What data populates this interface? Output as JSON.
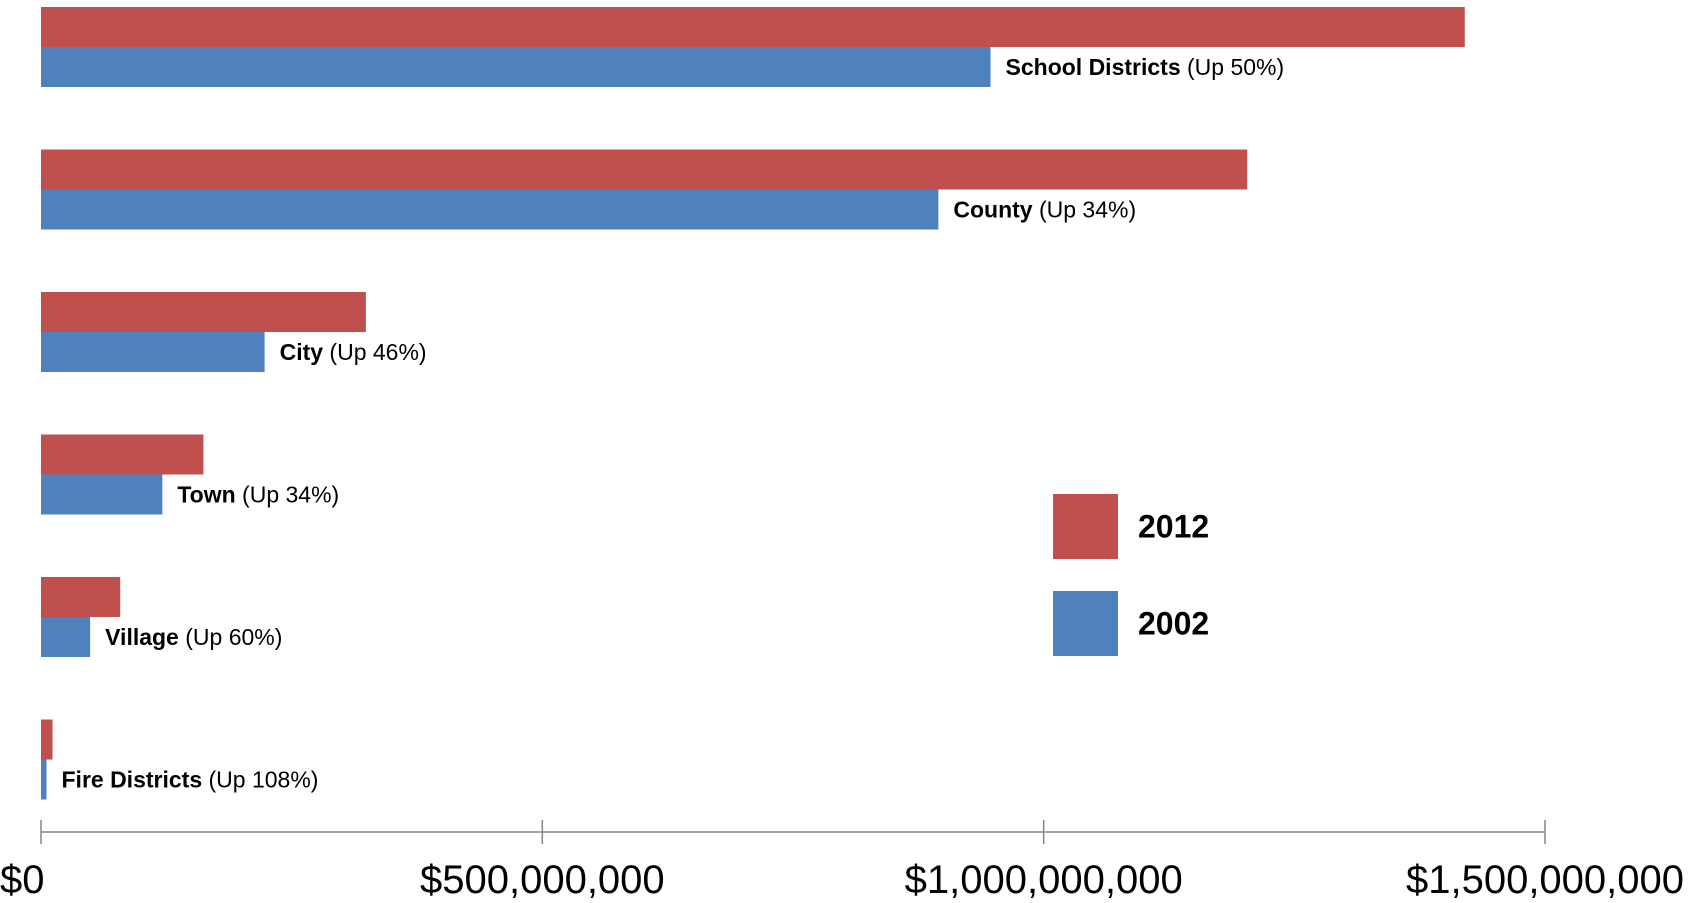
{
  "chart_data": {
    "type": "bar",
    "orientation": "horizontal",
    "categories": [
      "School Districts",
      "County",
      "City",
      "Town",
      "Village",
      "Fire Districts"
    ],
    "change_labels": [
      "(Up 50%)",
      "(Up 34%)",
      "(Up 46%)",
      "(Up 34%)",
      "(Up 60%)",
      "(Up 108%)"
    ],
    "series": [
      {
        "name": "2012",
        "color": "#C0504D",
        "values": [
          1420000000,
          1203000000,
          324000000,
          162000000,
          79000000,
          11500000
        ]
      },
      {
        "name": "2002",
        "color": "#4F81BD",
        "values": [
          947000000,
          895000000,
          223000000,
          121000000,
          49000000,
          5500000
        ]
      }
    ],
    "x_ticks": [
      0,
      500000000,
      1000000000,
      1500000000
    ],
    "x_tick_labels": [
      "$0",
      "$500,000,000",
      "$1,000,000,000",
      "$1,500,000,000"
    ],
    "xlim": [
      0,
      1500000000
    ],
    "xlabel": "",
    "ylabel": "",
    "title": "",
    "grid": false,
    "legend": {
      "position": "right",
      "entries": [
        "2012",
        "2002"
      ]
    }
  }
}
